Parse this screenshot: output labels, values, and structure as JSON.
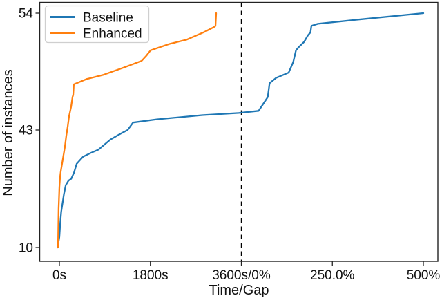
{
  "chart_data": {
    "type": "line",
    "title": "",
    "xlabel": "Time/Gap",
    "ylabel": "Number of instances",
    "x_axis": {
      "kind": "split",
      "left_segment": {
        "quantity": "runtime",
        "unit": "s",
        "min": 0,
        "max": 3600
      },
      "right_segment": {
        "quantity": "optimality gap",
        "unit": "%",
        "min": 0,
        "max": 500
      },
      "units_note": "u is tick-index units: 0=0s, 1=1800s, 2=3600s/0% cutoff, 3=250.0%, 4=500%",
      "ticks": [
        {
          "u": 0,
          "label": "0s"
        },
        {
          "u": 1,
          "label": "1800s"
        },
        {
          "u": 2,
          "label": "3600s/0%"
        },
        {
          "u": 3,
          "label": "250.0%"
        },
        {
          "u": 4,
          "label": "500%"
        }
      ],
      "divider_u": 2,
      "divider_style": "dashed-black-vertical"
    },
    "y_axis": {
      "min": 10,
      "max": 54,
      "ticks": [
        {
          "value": 54,
          "label": "54"
        },
        {
          "value": 43,
          "label": "43"
        },
        {
          "value": 10,
          "label": "10"
        }
      ],
      "scale_note": "non-linear: anchors 10, 43, 54 at even visual thirds-like spacing"
    },
    "grid": false,
    "frame_color": "#222222",
    "legend": {
      "position": "upper-left",
      "entries": [
        {
          "label": "Baseline",
          "color": "#1f77b4"
        },
        {
          "label": "Enhanced",
          "color": "#ff7f0e"
        }
      ]
    },
    "series": [
      {
        "name": "Baseline",
        "color": "#1f77b4",
        "points_u_v": [
          [
            -0.02,
            10
          ],
          [
            0,
            13
          ],
          [
            0.01,
            17
          ],
          [
            0.02,
            20
          ],
          [
            0.05,
            25
          ],
          [
            0.07,
            27.5
          ],
          [
            0.1,
            28.8
          ],
          [
            0.13,
            29.3
          ],
          [
            0.16,
            31
          ],
          [
            0.19,
            33.5
          ],
          [
            0.26,
            35.5
          ],
          [
            0.34,
            36.5
          ],
          [
            0.43,
            37.5
          ],
          [
            0.56,
            40.3
          ],
          [
            0.66,
            41.8
          ],
          [
            0.75,
            43
          ],
          [
            0.81,
            43.7
          ],
          [
            1.07,
            44
          ],
          [
            1.57,
            44.4
          ],
          [
            1.97,
            44.6
          ],
          [
            2.19,
            44.8
          ],
          [
            2.29,
            46.1
          ],
          [
            2.31,
            47.4
          ],
          [
            2.38,
            47.9
          ],
          [
            2.52,
            48.4
          ],
          [
            2.57,
            49.4
          ],
          [
            2.6,
            50.5
          ],
          [
            2.63,
            50.8
          ],
          [
            2.69,
            51.3
          ],
          [
            2.73,
            51.9
          ],
          [
            2.76,
            52.2
          ],
          [
            2.77,
            52.8
          ],
          [
            2.84,
            53
          ],
          [
            3.29,
            53.4
          ],
          [
            4,
            54
          ]
        ]
      },
      {
        "name": "Enhanced",
        "color": "#ff7f0e",
        "points_u_v": [
          [
            -0.015,
            10
          ],
          [
            -0.008,
            21
          ],
          [
            0,
            27
          ],
          [
            0.008,
            30
          ],
          [
            0.015,
            31.4
          ],
          [
            0.038,
            34.8
          ],
          [
            0.061,
            38.3
          ],
          [
            0.076,
            41.4
          ],
          [
            0.091,
            43.3
          ],
          [
            0.106,
            44.3
          ],
          [
            0.129,
            45.2
          ],
          [
            0.144,
            46.1
          ],
          [
            0.152,
            46.3
          ],
          [
            0.159,
            47.3
          ],
          [
            0.3,
            47.8
          ],
          [
            0.486,
            48.2
          ],
          [
            0.713,
            48.9
          ],
          [
            0.903,
            49.5
          ],
          [
            0.956,
            50
          ],
          [
            1.002,
            50.5
          ],
          [
            1.207,
            51.1
          ],
          [
            1.397,
            51.5
          ],
          [
            1.586,
            52.2
          ],
          [
            1.7,
            52.7
          ],
          [
            1.715,
            52.8
          ],
          [
            1.723,
            54
          ]
        ]
      }
    ]
  }
}
